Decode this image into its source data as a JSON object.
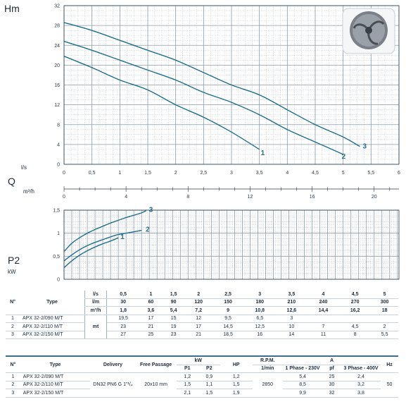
{
  "colors": {
    "curve": "#1d6f8f",
    "grid": "#8a9aa8",
    "axis": "#2a3a4a",
    "labels": "#1d6f8f"
  },
  "chart_data": [
    {
      "type": "line",
      "ylabel": "Hm",
      "xlabel": "l/s",
      "xlim": [
        0,
        6
      ],
      "ylim": [
        0,
        32
      ],
      "x_ticks": [
        "0",
        "0,5",
        "1",
        "1,5",
        "2",
        "2,5",
        "3",
        "3,5",
        "4",
        "4,5",
        "5",
        "5,5",
        "6"
      ],
      "y_ticks": [
        "0",
        "4",
        "8",
        "12",
        "16",
        "20",
        "24",
        "28",
        "32"
      ],
      "grid": true,
      "series": [
        {
          "name": "1",
          "x": [
            0,
            0.5,
            1,
            1.5,
            2,
            2.5,
            3,
            3.5
          ],
          "y": [
            21.8,
            19.5,
            17,
            15,
            12,
            9.5,
            6.5,
            3
          ]
        },
        {
          "name": "2",
          "x": [
            0,
            0.5,
            1,
            1.5,
            2,
            2.5,
            3,
            3.5,
            4,
            4.5,
            5
          ],
          "y": [
            24.8,
            23,
            21,
            19,
            17,
            14.5,
            12.5,
            10,
            7,
            4.5,
            2
          ]
        },
        {
          "name": "3",
          "x": [
            0,
            0.5,
            1,
            1.5,
            2,
            2.5,
            3,
            3.5,
            4,
            4.5,
            5,
            5.3
          ],
          "y": [
            28.6,
            27,
            25,
            23,
            21,
            18.5,
            16,
            14,
            11,
            8,
            5.5,
            3.6
          ]
        }
      ]
    },
    {
      "type": "line",
      "ylabel": "P2",
      "yunit": "kW",
      "xlabel": "Q",
      "xunit": "m³/h",
      "x_ticks": [
        "0",
        "4",
        "8",
        "12",
        "16",
        "20"
      ],
      "xlim": [
        0,
        21.6
      ],
      "ylim": [
        0,
        1.5
      ],
      "y_ticks": [
        "0",
        "0,5",
        "1",
        "1,5"
      ],
      "grid": true,
      "series": [
        {
          "name": "1",
          "x": [
            0,
            0.5,
            1,
            1.5,
            2,
            2.5,
            3,
            3.5
          ],
          "y": [
            0.25,
            0.4,
            0.52,
            0.62,
            0.7,
            0.77,
            0.83,
            0.9
          ]
        },
        {
          "name": "2",
          "x": [
            0,
            0.5,
            1,
            1.5,
            2,
            2.5,
            3,
            3.5,
            4,
            4.5,
            5
          ],
          "y": [
            0.4,
            0.53,
            0.64,
            0.73,
            0.8,
            0.86,
            0.92,
            0.97,
            1.0,
            1.03,
            1.06
          ]
        },
        {
          "name": "3",
          "x": [
            0,
            0.5,
            1,
            1.5,
            2,
            2.5,
            3,
            3.5,
            4,
            4.5,
            5,
            5.3
          ],
          "y": [
            0.6,
            0.78,
            0.9,
            1.0,
            1.08,
            1.15,
            1.22,
            1.28,
            1.34,
            1.39,
            1.44,
            1.49
          ]
        }
      ]
    }
  ],
  "chart_text": {
    "hm": "Hm",
    "ls": "l/s",
    "q": "Q",
    "m3h": "m³/h",
    "p2": "P2",
    "kw": "kW"
  },
  "perf_table": {
    "n_header": "N°",
    "type_header": "Type",
    "unit_rows": [
      "l/s",
      "l/m",
      "m³/h"
    ],
    "flow_ls": [
      "0,5",
      "1",
      "1,5",
      "2",
      "2,5",
      "3",
      "3,5",
      "4",
      "4,5",
      "5"
    ],
    "flow_lm": [
      "30",
      "60",
      "90",
      "120",
      "150",
      "180",
      "210",
      "240",
      "270",
      "300"
    ],
    "flow_m3h": [
      "1,8",
      "3,6",
      "5,4",
      "7,2",
      "9",
      "10,8",
      "12,6",
      "14,4",
      "16,2",
      "18"
    ],
    "head_unit": "mt",
    "rows": [
      {
        "n": "1",
        "type": "APX 32-2/090 M/T",
        "values": [
          "19,5",
          "17",
          "15",
          "12",
          "9,5",
          "6,5",
          "3",
          "",
          "",
          ""
        ]
      },
      {
        "n": "2",
        "type": "APX 32-2/110 M/T",
        "values": [
          "23",
          "21",
          "19",
          "17",
          "14,5",
          "12,5",
          "10",
          "7",
          "4,5",
          "2"
        ]
      },
      {
        "n": "3",
        "type": "APX 32-2/150 M/T",
        "values": [
          "27",
          "25",
          "23",
          "21",
          "18,5",
          "16",
          "14",
          "11",
          "8",
          "5,5"
        ]
      }
    ]
  },
  "elec_table": {
    "n_header": "N°",
    "type_header": "Type",
    "delivery_header": "Delivery",
    "free_passage_header": "Free Passage",
    "kw_header": "kW",
    "p1_header": "P1",
    "p2_header": "P2",
    "hp_header": "HP",
    "rpm_header": "R.P.M.",
    "rpm_unit": "1/min",
    "a_header": "A",
    "phase1_header": "1 Phase - 230V",
    "pf_header": "pf",
    "phase3_header": "3 Phase - 400V",
    "hz_header": "Hz",
    "delivery": "DN32 PN6 G 1\"¹/₄",
    "free_passage": "20x10 mm",
    "rpm": "2850",
    "hz": "50",
    "rows": [
      {
        "n": "1",
        "type": "APX 32-2/090 M/T",
        "p1": "1,2",
        "p2": "0,9",
        "hp": "1,2",
        "a1": "5,4",
        "pf": "25",
        "a3": "2,4"
      },
      {
        "n": "2",
        "type": "APX 32-2/110 M/T",
        "p1": "1,5",
        "p2": "1,1",
        "hp": "1,5",
        "a1": "8,5",
        "pf": "30",
        "a3": "3,2"
      },
      {
        "n": "3",
        "type": "APX 32-2/150 M/T",
        "p1": "2,1",
        "p2": "1,5",
        "hp": "1,9",
        "a1": "9,9",
        "pf": "32",
        "a3": "3,8"
      }
    ]
  },
  "icons": {
    "impeller": "impeller-image"
  }
}
